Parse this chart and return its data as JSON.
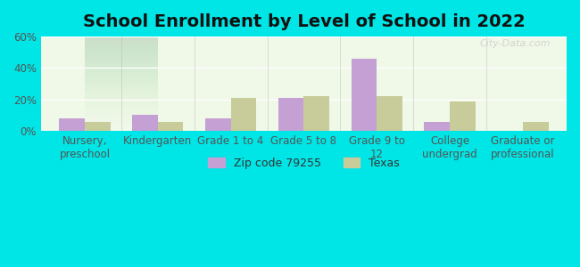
{
  "title": "School Enrollment by Level of School in 2022",
  "categories": [
    "Nursery,\npreschool",
    "Kindergarten",
    "Grade 1 to 4",
    "Grade 5 to 8",
    "Grade 9 to\n12",
    "College\nundergrad",
    "Graduate or\nprofessional"
  ],
  "zip_values": [
    8,
    10,
    8,
    21,
    46,
    6,
    0
  ],
  "texas_values": [
    6,
    6,
    21,
    22,
    22,
    19,
    6
  ],
  "zip_color": "#c4a0d4",
  "texas_color": "#c8cc9a",
  "background_outer": "#00e5e5",
  "background_inner_top": "#f0f8e8",
  "background_inner_bottom": "#e8f4f0",
  "ylim": [
    0,
    60
  ],
  "yticks": [
    0,
    20,
    40,
    60
  ],
  "ytick_labels": [
    "0%",
    "20%",
    "40%",
    "60%"
  ],
  "zip_label": "Zip code 79255",
  "texas_label": "Texas",
  "bar_width": 0.35,
  "watermark": "City-Data.com",
  "title_fontsize": 14,
  "tick_fontsize": 8.5
}
